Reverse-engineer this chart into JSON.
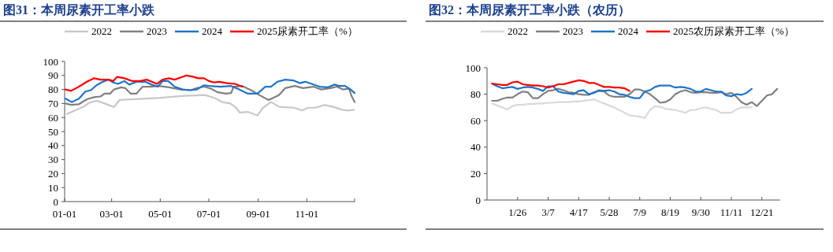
{
  "chart_data": [
    {
      "type": "line",
      "title": "图31：本周尿素开工率小跌",
      "legend": "top",
      "xlim": [
        "--01-01",
        "--12-31"
      ],
      "xticks": [
        {
          "value": "--01-01",
          "label": "01-01"
        },
        {
          "value": "--03-01",
          "label": "03-01"
        },
        {
          "value": "--05-01",
          "label": "05-01"
        },
        {
          "value": "--07-01",
          "label": "07-01"
        },
        {
          "value": "--09-01",
          "label": "09-01"
        },
        {
          "value": "--11-01",
          "label": "11-01"
        },
        {
          "value": "--12-31",
          "label": null
        }
      ],
      "ylim": [
        0,
        100
      ],
      "yticks": [
        0,
        10,
        20,
        30,
        40,
        50,
        60,
        70,
        80,
        90,
        100
      ],
      "series": [
        {
          "name": "2022",
          "color": "#c8c8c8",
          "x": [
            "--01-04",
            "--01-14",
            "--01-24",
            "--02-01",
            "--02-10",
            "--02-20",
            "--03-04",
            "--03-11",
            "--03-26",
            "--04-29",
            "--06-01",
            "--06-26",
            "--07-08",
            "--07-18",
            "--07-28",
            "--08-04",
            "--08-09",
            "--08-19",
            "--08-31",
            "--09-07",
            "--09-17",
            "--09-28",
            "--10-16",
            "--10-26",
            "--11-03",
            "--11-12",
            "--11-23",
            "--12-05",
            "--12-15",
            "--12-23",
            "--12-30"
          ],
          "values": [
            62.5,
            65,
            67.5,
            70.5,
            72,
            70,
            67.5,
            72.5,
            73,
            74,
            75.5,
            76,
            74,
            71,
            70,
            67,
            63.5,
            64,
            61.5,
            67,
            71,
            67.5,
            67,
            65,
            67,
            67,
            69,
            67.5,
            65.5,
            65,
            65.5
          ]
        },
        {
          "name": "2023",
          "color": "#808080",
          "x": [
            "--01-02",
            "--01-09",
            "--01-19",
            "--01-29",
            "--02-07",
            "--02-15",
            "--02-20",
            "--02-27",
            "--03-04",
            "--03-13",
            "--03-18",
            "--03-25",
            "--04-01",
            "--04-09",
            "--04-19",
            "--04-29",
            "--05-12",
            "--05-26",
            "--06-08",
            "--06-16",
            "--06-25",
            "--07-04",
            "--07-12",
            "--07-22",
            "--07-29",
            "--08-01",
            "--08-12",
            "--08-23",
            "--09-04",
            "--09-14",
            "--09-27",
            "--10-05",
            "--10-17",
            "--10-27",
            "--11-09",
            "--11-19",
            "--12-01",
            "--12-09",
            "--12-16",
            "--12-24",
            "--12-27",
            "--12-31"
          ],
          "values": [
            70,
            69,
            69.5,
            73,
            74.5,
            75,
            77,
            77,
            80,
            81.5,
            81,
            77,
            77,
            82,
            82,
            82.5,
            81.5,
            80,
            79.5,
            81,
            82,
            80.5,
            78,
            77,
            77.5,
            82,
            82.5,
            79.5,
            75.5,
            72.5,
            76,
            81,
            82.5,
            81,
            82,
            80,
            81,
            82,
            80,
            80.5,
            75.5,
            71
          ]
        },
        {
          "name": "2024",
          "color": "#1f74c8",
          "x": [
            "--01-02",
            "--01-10",
            "--01-19",
            "--01-27",
            "--02-03",
            "--02-10",
            "--02-18",
            "--02-25",
            "--03-03",
            "--03-09",
            "--03-17",
            "--03-23",
            "--04-02",
            "--04-12",
            "--04-20",
            "--04-28",
            "--05-04",
            "--05-11",
            "--05-19",
            "--05-29",
            "--06-08",
            "--06-16",
            "--06-25",
            "--07-01",
            "--07-16",
            "--07-29",
            "--08-08",
            "--08-19",
            "--08-31",
            "--09-10",
            "--09-17",
            "--09-25",
            "--10-05",
            "--10-15",
            "--10-23",
            "--10-30",
            "--11-07",
            "--11-17",
            "--11-27",
            "--12-06",
            "--12-11",
            "--12-19",
            "--12-26",
            "--12-31"
          ],
          "values": [
            73.5,
            71,
            73.5,
            78.5,
            79.5,
            83,
            85.5,
            87,
            85,
            84,
            86,
            83.5,
            85.5,
            85.5,
            83.5,
            82,
            86,
            86,
            82,
            80,
            79.5,
            80,
            83,
            82.5,
            82,
            82.5,
            80,
            77,
            77,
            82,
            82,
            85.5,
            87,
            86.5,
            84.5,
            85.5,
            84,
            82,
            81.5,
            83.5,
            82.5,
            82.5,
            80,
            77.5
          ]
        },
        {
          "name": "2025尿素开工率（%）",
          "color": "#ff0000",
          "x": [
            "--01-02",
            "--01-09",
            "--01-19",
            "--01-29",
            "--02-07",
            "--02-15",
            "--02-25",
            "--03-03",
            "--03-08",
            "--03-17",
            "--03-27",
            "--04-06",
            "--04-14",
            "--04-27",
            "--05-04",
            "--05-12",
            "--05-19",
            "--06-03",
            "--06-12",
            "--06-18",
            "--06-25",
            "--07-01",
            "--07-08",
            "--07-14",
            "--07-24",
            "--08-03",
            "--08-12"
          ],
          "values": [
            80,
            79,
            82,
            85.5,
            88,
            87,
            87,
            86,
            89,
            88,
            86,
            86,
            87,
            84,
            87,
            88,
            87,
            90,
            89,
            88,
            88,
            86,
            85,
            85.5,
            84.5,
            84,
            82
          ]
        }
      ]
    },
    {
      "type": "line",
      "title": "图32：本周尿素开工率小跌（农历）",
      "legend": "top",
      "categories": [
        null,
        null,
        null,
        null,
        null,
        null,
        "1/26",
        null,
        null,
        null,
        null,
        null,
        "3/7",
        null,
        null,
        null,
        null,
        null,
        "4/17",
        null,
        null,
        null,
        null,
        null,
        "5/28",
        null,
        null,
        null,
        null,
        null,
        "7/9",
        null,
        null,
        null,
        null,
        null,
        "8/19",
        null,
        null,
        null,
        null,
        null,
        "9/30",
        null,
        null,
        null,
        null,
        null,
        "11/11",
        null,
        null,
        null,
        null,
        null,
        "12/21",
        null,
        null,
        null
      ],
      "ylim": [
        0,
        100
      ],
      "yticks": [
        0,
        20,
        40,
        60,
        80,
        100
      ],
      "series": [
        {
          "name": "2022",
          "color": "#d9d9d9",
          "values": [
            null,
            73,
            71.5,
            70,
            68.5,
            71,
            72,
            72,
            72.5,
            72.5,
            73,
            73,
            73.5,
            73.5,
            74,
            74,
            74,
            74.5,
            74.5,
            75,
            75.5,
            76,
            74.5,
            73,
            71.5,
            70,
            68,
            66,
            64,
            63.5,
            63,
            62,
            68,
            71,
            70.5,
            69,
            68.5,
            68,
            67,
            66,
            68,
            68,
            69.5,
            70,
            69,
            68,
            66,
            66,
            66,
            68.5,
            70,
            70,
            70,
            null,
            null,
            null,
            null,
            null
          ]
        },
        {
          "name": "2023",
          "color": "#808080",
          "values": [
            null,
            75,
            75,
            76.5,
            77.5,
            77.5,
            80,
            82,
            81.5,
            77,
            77,
            80,
            82.5,
            83,
            84,
            83,
            81.5,
            81,
            80,
            79.5,
            79.5,
            81.5,
            82.5,
            82,
            79,
            78,
            78,
            78,
            80,
            83.5,
            83.5,
            82,
            80,
            77,
            73.5,
            74,
            76,
            80,
            82,
            83,
            81.5,
            81,
            81.5,
            81.5,
            81,
            81,
            81.5,
            80,
            81,
            78,
            74,
            72,
            74,
            71,
            75,
            79,
            80,
            84
          ]
        },
        {
          "name": "2024",
          "color": "#1f74c8",
          "values": [
            null,
            88,
            86,
            84.5,
            85,
            85.5,
            84,
            85,
            85.5,
            85,
            84,
            82.5,
            86,
            86,
            82,
            81,
            80.5,
            80,
            82.5,
            83,
            80,
            81,
            83,
            82.5,
            83,
            82,
            80,
            79.5,
            78,
            77,
            77,
            82,
            83,
            85.5,
            86.5,
            86.5,
            86.5,
            85,
            85.5,
            85,
            84,
            82,
            82,
            84,
            83,
            82,
            82,
            79,
            78.5,
            80,
            79.5,
            81,
            84,
            null,
            null,
            null,
            null,
            null
          ]
        },
        {
          "name": "2025农历尿素开工率（%）",
          "color": "#ff0000",
          "values": [
            null,
            88,
            87.5,
            87,
            87,
            89,
            89.5,
            87.5,
            87,
            86.5,
            86.5,
            86,
            85,
            86,
            87.5,
            87.5,
            88.5,
            89.5,
            90.5,
            90,
            88.5,
            88.5,
            87,
            85.5,
            85.5,
            85,
            85,
            84.5,
            82.5,
            null,
            null,
            null,
            null,
            null,
            null,
            null,
            null,
            null,
            null,
            null,
            null,
            null,
            null,
            null,
            null,
            null,
            null,
            null,
            null,
            null,
            null,
            null,
            null,
            null,
            null,
            null,
            null,
            null
          ]
        }
      ]
    }
  ]
}
